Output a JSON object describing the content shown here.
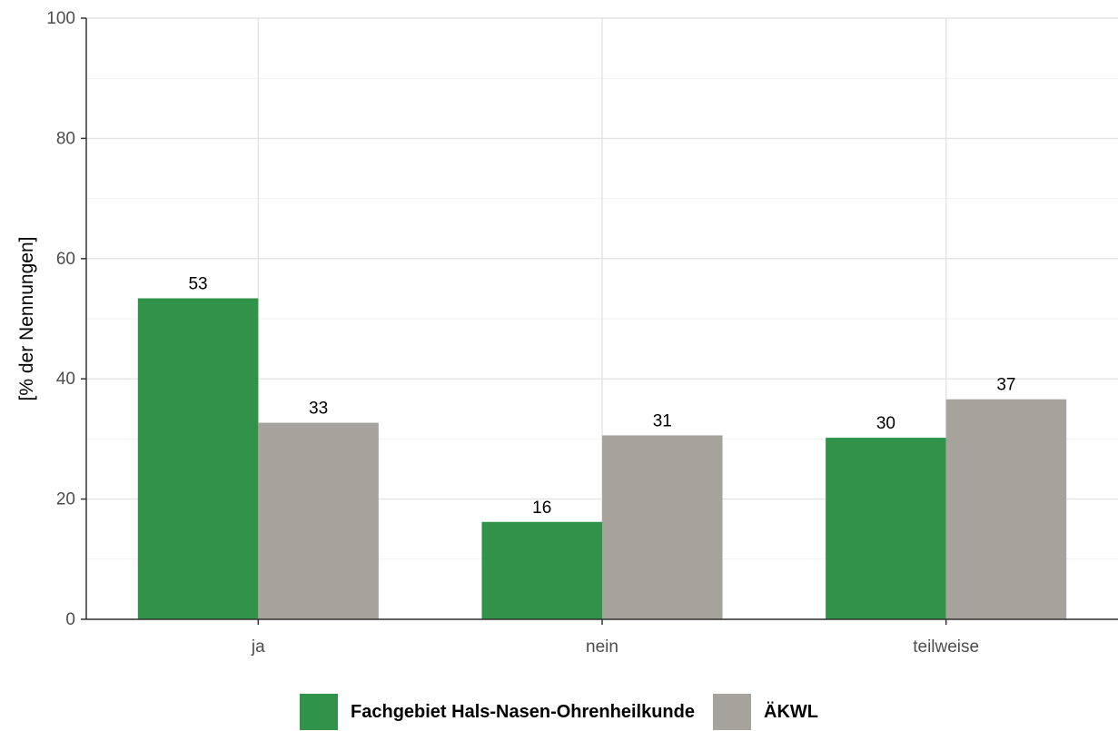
{
  "chart_data": {
    "type": "bar",
    "title": "",
    "xlabel": "",
    "ylabel": "[% der Nennungen]",
    "categories": [
      "ja",
      "nein",
      "teilweise"
    ],
    "series": [
      {
        "name": "Fachgebiet Hals-Nasen-Ohrenheilkunde",
        "color": "#31934a",
        "values": [
          53.4,
          16.2,
          30.2
        ],
        "labels": [
          "53",
          "16",
          "30"
        ]
      },
      {
        "name": "ÄKWL",
        "color": "#a6a39d",
        "values": [
          32.7,
          30.6,
          36.6
        ],
        "labels": [
          "33",
          "31",
          "37"
        ]
      }
    ],
    "ylim": [
      0,
      100
    ],
    "yticks": [
      0,
      20,
      40,
      60,
      80,
      100
    ],
    "grid": true,
    "legend_position": "bottom"
  }
}
